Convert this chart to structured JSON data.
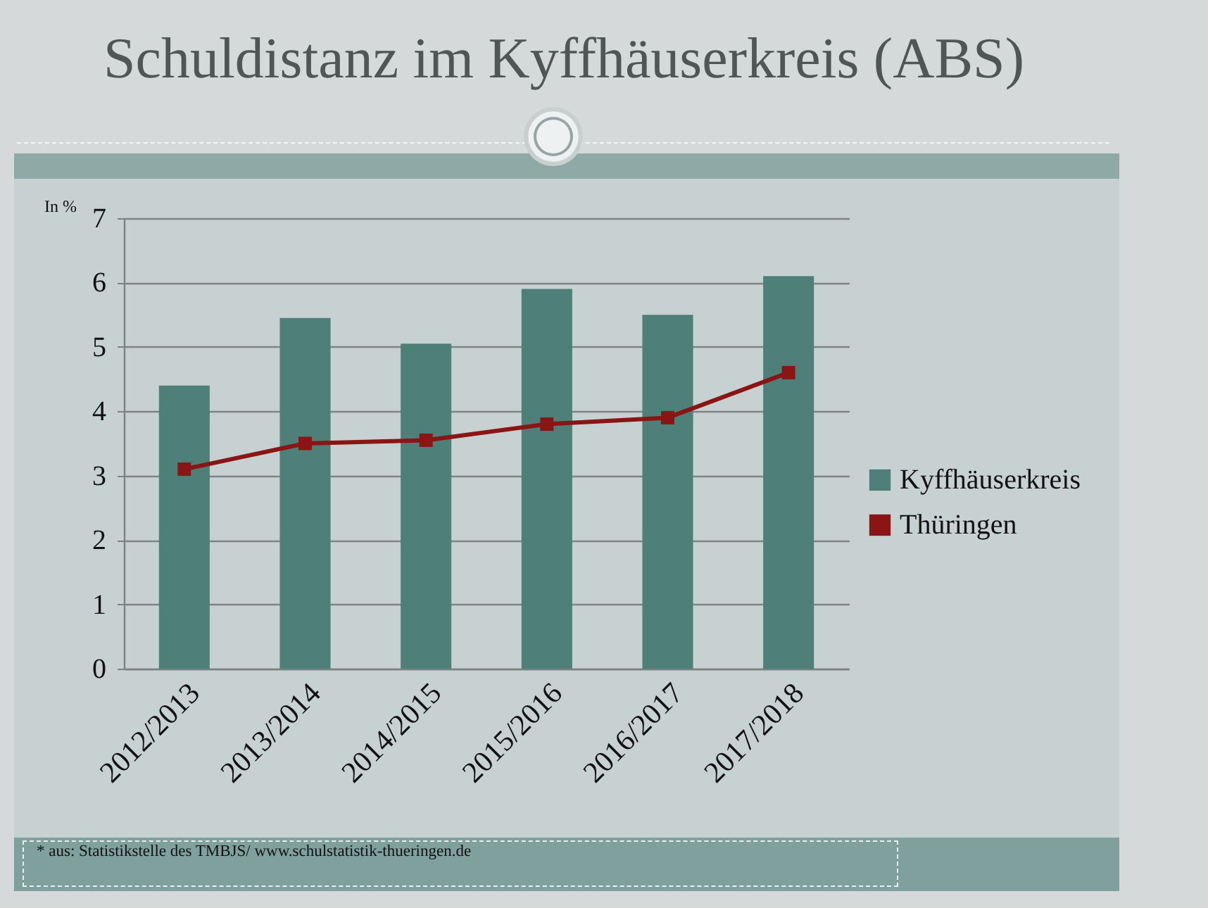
{
  "chart_data": {
    "type": "bar",
    "title": "Schuldistanz im Kyffhäuserkreis (ABS)",
    "ylabel": "In %",
    "categories": [
      "2012/2013",
      "2013/2014",
      "2014/2015",
      "2015/2016",
      "2016/2017",
      "2017/2018"
    ],
    "series": [
      {
        "name": "Kyffhäuserkreis",
        "color": "#4f7f79",
        "values": [
          4.4,
          5.45,
          5.05,
          5.9,
          5.5,
          6.1
        ]
      },
      {
        "name": "Thüringen",
        "type": "line",
        "color": "#8b1414",
        "values": [
          3.1,
          3.5,
          3.55,
          3.8,
          3.9,
          4.6
        ]
      }
    ],
    "ylim": [
      0,
      7
    ],
    "yticks": [
      0,
      1,
      2,
      3,
      4,
      5,
      6,
      7
    ],
    "grid": "y",
    "legend": "right",
    "marker": "square",
    "line_style": "solid",
    "annotations": [
      "* aus: Statistikstelle des TMBJS/ www.schulstatistik-thueringen.de"
    ]
  }
}
